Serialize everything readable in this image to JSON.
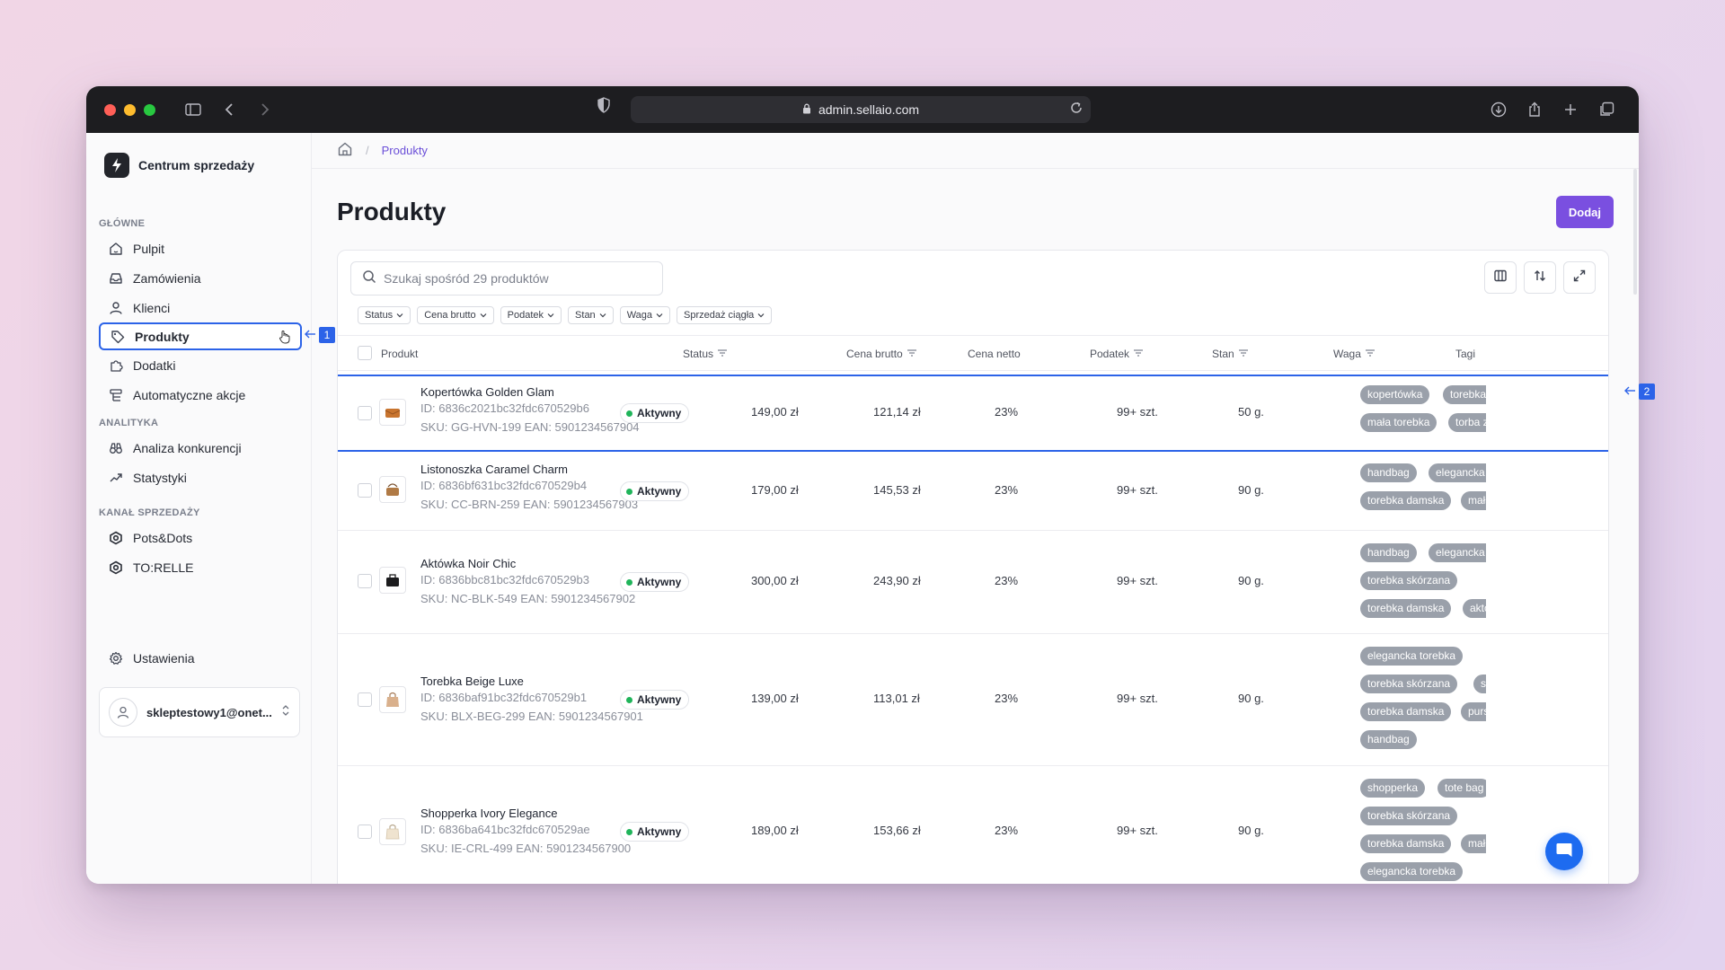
{
  "browser": {
    "url": "admin.sellaio.com"
  },
  "brand": {
    "name": "Centrum sprzedaży"
  },
  "sidebar": {
    "sections": [
      {
        "title": "GŁÓWNE",
        "items": [
          {
            "label": "Pulpit",
            "icon": "home-icon"
          },
          {
            "label": "Zamówienia",
            "icon": "inbox-icon"
          },
          {
            "label": "Klienci",
            "icon": "user-icon"
          },
          {
            "label": "Produkty",
            "icon": "tag-icon",
            "active": true
          },
          {
            "label": "Dodatki",
            "icon": "puzzle-icon"
          },
          {
            "label": "Automatyczne akcje",
            "icon": "automation-icon"
          }
        ]
      },
      {
        "title": "ANALITYKA",
        "items": [
          {
            "label": "Analiza konkurencji",
            "icon": "binoculars-icon"
          },
          {
            "label": "Statystyki",
            "icon": "trend-icon"
          }
        ]
      },
      {
        "title": "KANAŁ SPRZEDAŻY",
        "items": [
          {
            "label": "Pots&Dots",
            "icon": "channel-icon"
          },
          {
            "label": "TO:RELLE",
            "icon": "channel-icon"
          }
        ]
      }
    ],
    "settings_label": "Ustawienia",
    "user_email": "skleptestowy1@onet..."
  },
  "callouts": {
    "sidebar": "1",
    "row": "2"
  },
  "breadcrumb": {
    "current": "Produkty"
  },
  "page": {
    "title": "Produkty",
    "add_label": "Dodaj"
  },
  "search": {
    "placeholder": "Szukaj spośród 29 produktów"
  },
  "filters": [
    "Status",
    "Cena brutto",
    "Podatek",
    "Stan",
    "Waga",
    "Sprzedaż ciągła"
  ],
  "columns": {
    "product": "Produkt",
    "status": "Status",
    "gross": "Cena brutto",
    "net": "Cena netto",
    "tax": "Podatek",
    "stock": "Stan",
    "weight": "Waga",
    "tags": "Tagi"
  },
  "products": [
    {
      "name": "Kopertówka Golden Glam",
      "id": "ID: 6836c2021bc32fdc670529b6",
      "sku": "SKU: GG-HVN-199 EAN: 5901234567904",
      "status": "Aktywny",
      "gross": "149,00 zł",
      "net": "121,14 zł",
      "tax": "23%",
      "stock": "99+ szt.",
      "weight": "50 g.",
      "tags": [
        "kopertówka",
        "torebka damska",
        "mała torebka",
        "torba z zamkiem"
      ],
      "thumb_color": "#c8742e"
    },
    {
      "name": "Listonoszka Caramel Charm",
      "id": "ID: 6836bf631bc32fdc670529b4",
      "sku": "SKU: CC-BRN-259 EAN: 5901234567903",
      "status": "Aktywny",
      "gross": "179,00 zł",
      "net": "145,53 zł",
      "tax": "23%",
      "stock": "99+ szt.",
      "weight": "90 g.",
      "tags": [
        "handbag",
        "elegancka torebka",
        "torebka damska",
        "mała torebka"
      ],
      "thumb_color": "#b07a45"
    },
    {
      "name": "Aktówka Noir Chic",
      "id": "ID: 6836bbc81bc32fdc670529b3",
      "sku": "SKU: NC-BLK-549 EAN: 5901234567902",
      "status": "Aktywny",
      "gross": "300,00 zł",
      "net": "243,90 zł",
      "tax": "23%",
      "stock": "99+ szt.",
      "weight": "90 g.",
      "tags": [
        "handbag",
        "elegancka torebka",
        "torebka skórzana",
        "torebka damska",
        "aktówka"
      ],
      "thumb_color": "#1c1c1e"
    },
    {
      "name": "Torebka Beige Luxe",
      "id": "ID: 6836baf91bc32fdc670529b1",
      "sku": "SKU: BLX-BEG-299 EAN: 5901234567901",
      "status": "Aktywny",
      "gross": "139,00 zł",
      "net": "113,01 zł",
      "tax": "23%",
      "stock": "99+ szt.",
      "weight": "90 g.",
      "tags": [
        "elegancka torebka",
        "torebka skórzana",
        "soft bag",
        "torebka damska",
        "purse",
        "handbag"
      ],
      "thumb_color": "#d9b08c"
    },
    {
      "name": "Shopperka Ivory Elegance",
      "id": "ID: 6836ba641bc32fdc670529ae",
      "sku": "SKU: IE-CRL-499 EAN: 5901234567900",
      "status": "Aktywny",
      "gross": "189,00 zł",
      "net": "153,66 zł",
      "tax": "23%",
      "stock": "99+ szt.",
      "weight": "90 g.",
      "tags": [
        "shopperka",
        "tote bag",
        "torebka skórzana",
        "torebka damska",
        "mała",
        "elegancka torebka"
      ],
      "thumb_color": "#efe3cf"
    }
  ]
}
